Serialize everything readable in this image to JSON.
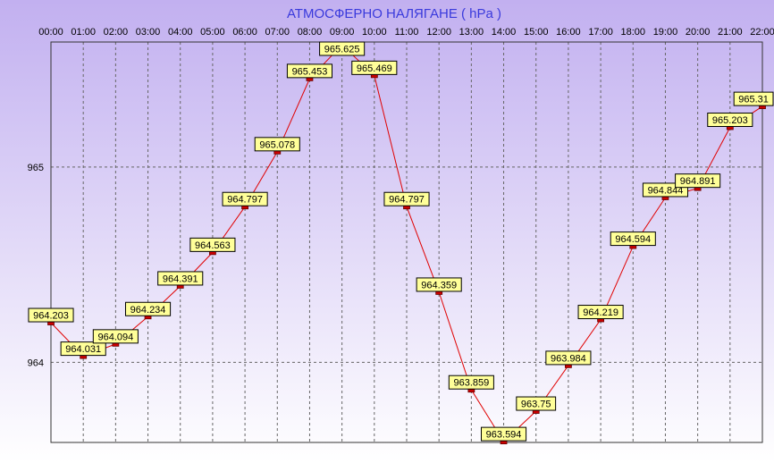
{
  "chart_data": {
    "type": "line",
    "title": "АТМОСФЕРНО НАЛЯГАНЕ  ( hPa )",
    "x": [
      "00:00",
      "01:00",
      "02:00",
      "03:00",
      "04:00",
      "05:00",
      "06:00",
      "07:00",
      "08:00",
      "09:00",
      "10:00",
      "11:00",
      "12:00",
      "13:00",
      "14:00",
      "15:00",
      "16:00",
      "17:00",
      "18:00",
      "19:00",
      "20:00",
      "21:00",
      "22:00"
    ],
    "series": [
      {
        "values": [
          964.203,
          964.031,
          964.094,
          964.234,
          964.391,
          964.563,
          964.797,
          965.078,
          965.453,
          965.625,
          965.469,
          964.797,
          964.359,
          963.859,
          963.594,
          963.75,
          963.984,
          964.219,
          964.594,
          964.844,
          964.891,
          965.203,
          965.31
        ],
        "labels": [
          "964.203",
          "964.031",
          "964.094",
          "964.234",
          "964.391",
          "964.563",
          "964.797",
          "965.078",
          "965.453",
          "965.625",
          "965.469",
          "964.797",
          "964.359",
          "963.859",
          "963.594",
          "963.75",
          "963.984",
          "964.219",
          "964.594",
          "964.844",
          "964.891",
          "965.203",
          "965.31"
        ],
        "color": "#e00000"
      }
    ],
    "yticks": [
      964,
      965
    ],
    "ytick_labels": [
      "964",
      "965"
    ],
    "ylim": [
      963.59,
      965.64
    ],
    "grid": true,
    "x_axis_position": "top",
    "colors": {
      "background_top": "#c2b0f0",
      "background_bottom": "#ffffff",
      "label_box": "#ffff99",
      "marker": "#cc0000",
      "title": "#3a3adc"
    }
  }
}
